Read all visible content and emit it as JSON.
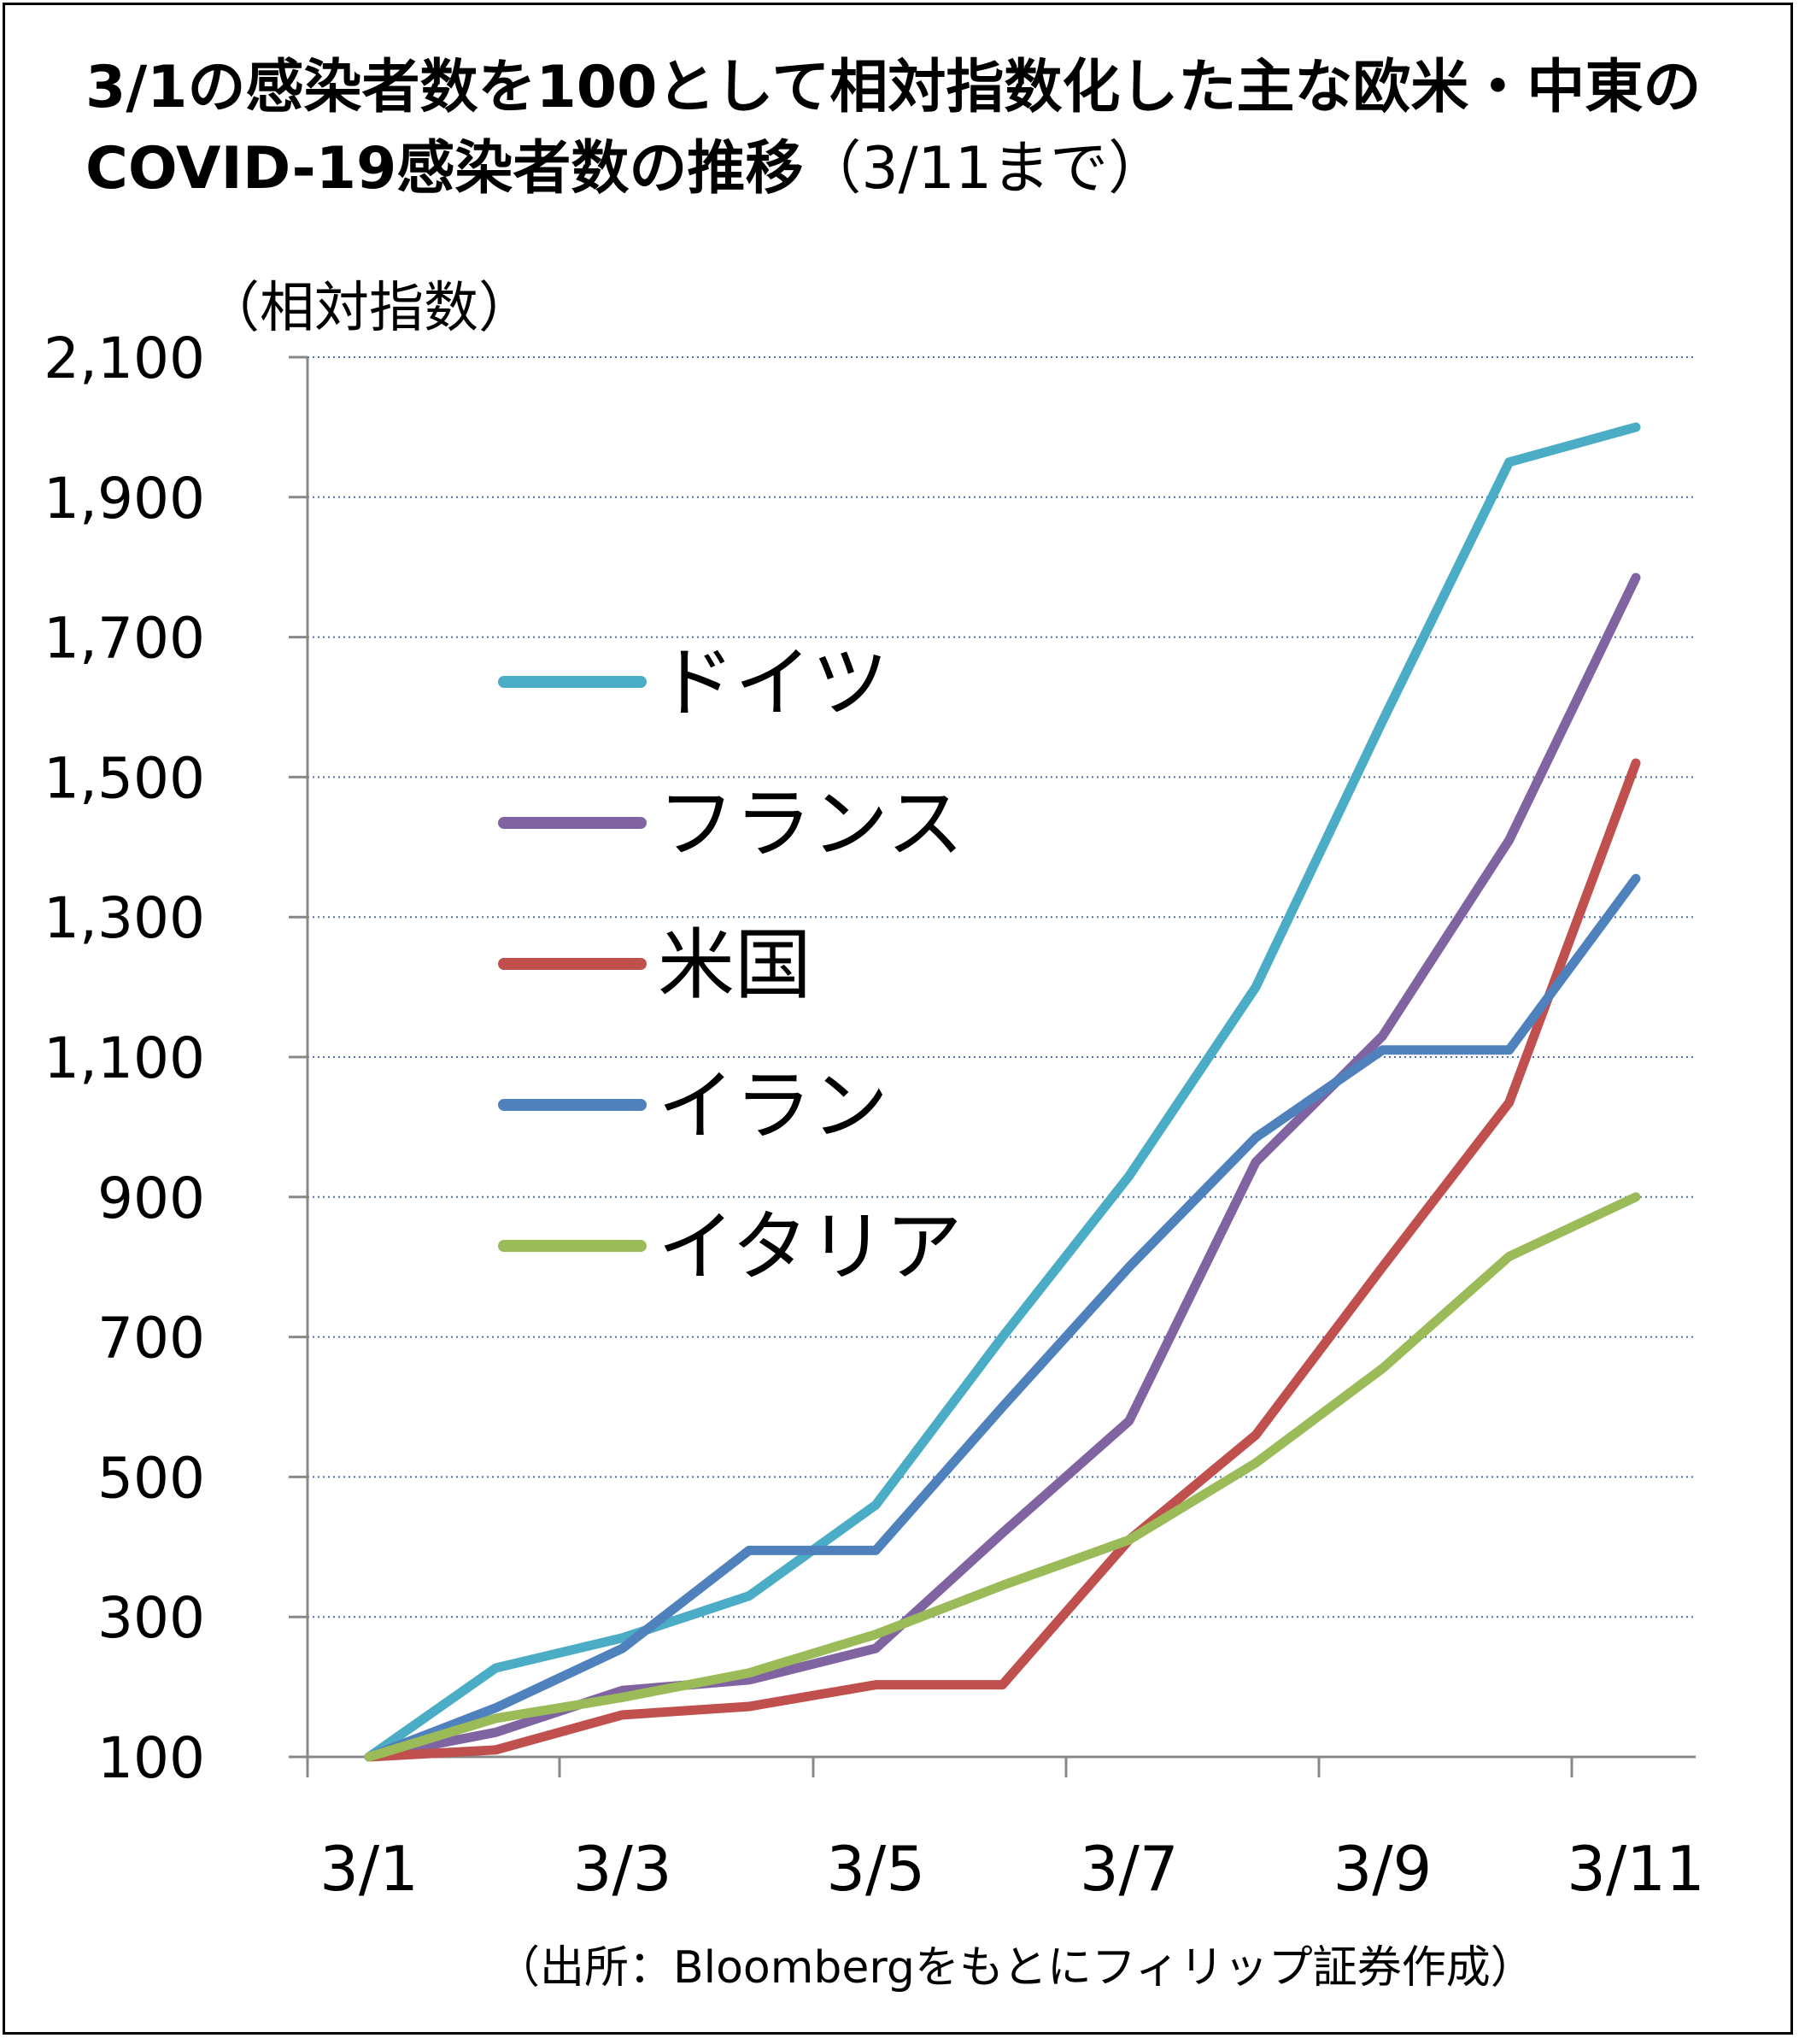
{
  "chart_data": {
    "type": "line",
    "title": "3/1の感染者数を100として相対指数化した主な欧米・中東のCOVID-19感染者数の推移",
    "title_suffix": "（3/11まで）",
    "ylabel": "（相対指数）",
    "source": "（出所：Bloombergをもとにフィリップ証券作成）",
    "x": [
      "3/1",
      "3/2",
      "3/3",
      "3/4",
      "3/5",
      "3/6",
      "3/7",
      "3/8",
      "3/9",
      "3/10",
      "3/11"
    ],
    "x_tick_labels": [
      "3/1",
      "3/3",
      "3/5",
      "3/7",
      "3/9",
      "3/11"
    ],
    "y_ticks": [
      100,
      300,
      500,
      700,
      900,
      1100,
      1300,
      1500,
      1700,
      1900,
      2100
    ],
    "y_tick_labels": [
      "100",
      "300",
      "500",
      "700",
      "900",
      "1,100",
      "1,300",
      "1,500",
      "1,700",
      "1,900",
      "2,100"
    ],
    "ylim": [
      100,
      2100
    ],
    "grid": "horizontal dotted",
    "legend_position": "left-center",
    "series": [
      {
        "name": "ドイツ",
        "color": "#4BACC6",
        "values": [
          100,
          227,
          270,
          330,
          460,
          700,
          930,
          1200,
          1580,
          1950,
          2000
        ]
      },
      {
        "name": "フランス",
        "color": "#8064A2",
        "values": [
          100,
          135,
          195,
          210,
          255,
          420,
          580,
          950,
          1130,
          1410,
          1785
        ]
      },
      {
        "name": "米国",
        "color": "#C0504D",
        "values": [
          100,
          110,
          160,
          172,
          203,
          203,
          410,
          560,
          800,
          1035,
          1520
        ]
      },
      {
        "name": "イラン",
        "color": "#4F81BD",
        "values": [
          100,
          170,
          255,
          395,
          395,
          600,
          800,
          985,
          1110,
          1110,
          1355
        ]
      },
      {
        "name": "イタリア",
        "color": "#9BBB59",
        "values": [
          100,
          155,
          185,
          220,
          275,
          345,
          410,
          520,
          655,
          815,
          900
        ]
      }
    ]
  }
}
